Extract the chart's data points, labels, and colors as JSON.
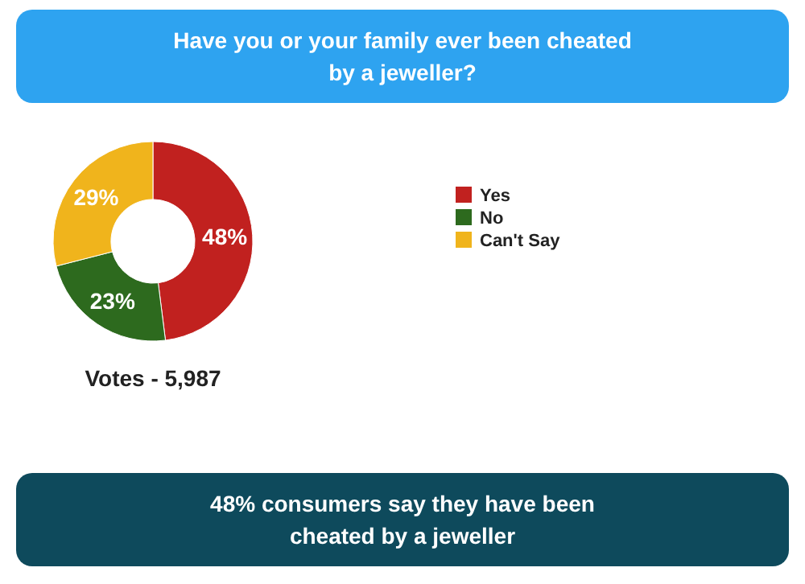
{
  "chart_data": {
    "type": "donut",
    "title": "Have you or your family ever been cheated by a jeweller?",
    "categories": [
      "Yes",
      "No",
      "Can't Say"
    ],
    "values": [
      48,
      23,
      29
    ],
    "colors": [
      "#c1211f",
      "#2d6a1e",
      "#f0b41c"
    ],
    "value_labels": [
      "48%",
      "23%",
      "29%"
    ],
    "legend": "right",
    "annotations": [
      "Votes - 5,987",
      "48% consumers say they have been cheated by a jeweller"
    ]
  }
}
